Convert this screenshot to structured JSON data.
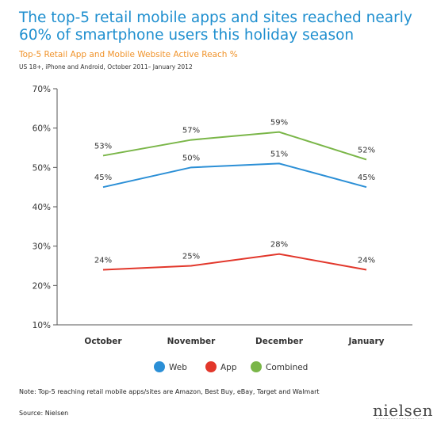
{
  "title": "The top-5 retail mobile apps and sites reached nearly 60% of smartphone users this holiday season",
  "subtitle": "Top-5 Retail App and Mobile Website Active Reach %",
  "note_top": "US 18+, iPhone and Android, October 2011– January 2012",
  "footnote": "Note: Top-5 reaching retail mobile apps/sites are Amazon, Best Buy, eBay, Target and Walmart",
  "source": "Source: Nielsen",
  "logo_text": "nielsen",
  "colors": {
    "web": "#2b8fd6",
    "app": "#e2372b",
    "combined": "#7ab648",
    "axis": "#555555"
  },
  "chart_data": {
    "type": "line",
    "categories": [
      "October",
      "November",
      "December",
      "January"
    ],
    "ylim": [
      10,
      70
    ],
    "yticks": [
      "10%",
      "20%",
      "30%",
      "40%",
      "50%",
      "60%",
      "70%"
    ],
    "grid": false,
    "legend_position": "bottom",
    "series": [
      {
        "name": "Web",
        "values": [
          45,
          50,
          51,
          45
        ],
        "labels": [
          "45%",
          "50%",
          "51%",
          "45%"
        ],
        "color": "#2b8fd6"
      },
      {
        "name": "App",
        "values": [
          24,
          25,
          28,
          24
        ],
        "labels": [
          "24%",
          "25%",
          "28%",
          "24%"
        ],
        "color": "#e2372b"
      },
      {
        "name": "Combined",
        "values": [
          53,
          57,
          59,
          52
        ],
        "labels": [
          "53%",
          "57%",
          "59%",
          "52%"
        ],
        "color": "#7ab648"
      }
    ]
  }
}
